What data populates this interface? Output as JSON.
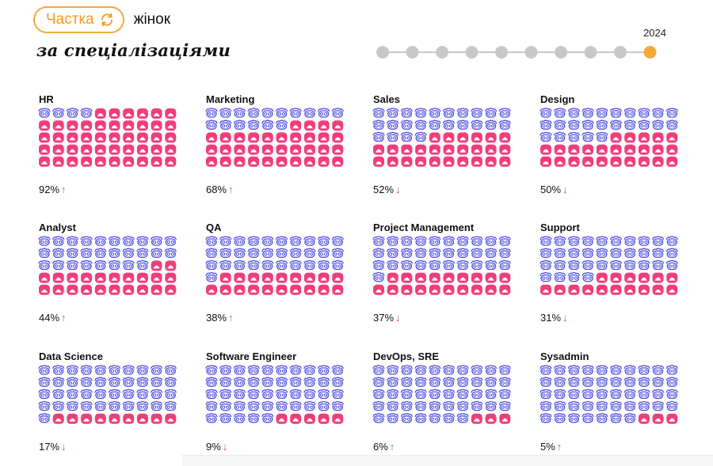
{
  "header": {
    "pill_label": "Частка",
    "pill_icon": "refresh-icon",
    "suffix": "жінок",
    "subtitle": "за спеціалізаціями"
  },
  "timeline": {
    "selected_year": "2024",
    "dot_count": 10,
    "selected_index": 9
  },
  "colors": {
    "accent": "#f4a93a",
    "women": "#f03e78",
    "men": "#4a4ae0",
    "dot_inactive": "#c8c8c8",
    "up": "#3aa74a",
    "down": "#e04848"
  },
  "chart_data": {
    "type": "pictogram",
    "title": "",
    "unit": "%",
    "icons_per_card": 50,
    "series": [
      {
        "name": "HR",
        "value": 92,
        "label": "92%",
        "trend": "up"
      },
      {
        "name": "Marketing",
        "value": 68,
        "label": "68%",
        "trend": "up"
      },
      {
        "name": "Sales",
        "value": 52,
        "label": "52%",
        "trend": "down"
      },
      {
        "name": "Design",
        "value": 50,
        "label": "50%",
        "trend": "down"
      },
      {
        "name": "Analyst",
        "value": 44,
        "label": "44%",
        "trend": "up"
      },
      {
        "name": "QA",
        "value": 38,
        "label": "38%",
        "trend": "up"
      },
      {
        "name": "Project Management",
        "value": 37,
        "label": "37%",
        "trend": "down"
      },
      {
        "name": "Support",
        "value": 31,
        "label": "31%",
        "trend": "down"
      },
      {
        "name": "Data Science",
        "value": 17,
        "label": "17%",
        "trend": "down"
      },
      {
        "name": "Software Engineer",
        "value": 9,
        "label": "9%",
        "trend": "down"
      },
      {
        "name": "DevOps, SRE",
        "value": 6,
        "label": "6%",
        "trend": "up"
      },
      {
        "name": "Sysadmin",
        "value": 5,
        "label": "5%",
        "trend": "up"
      }
    ]
  }
}
